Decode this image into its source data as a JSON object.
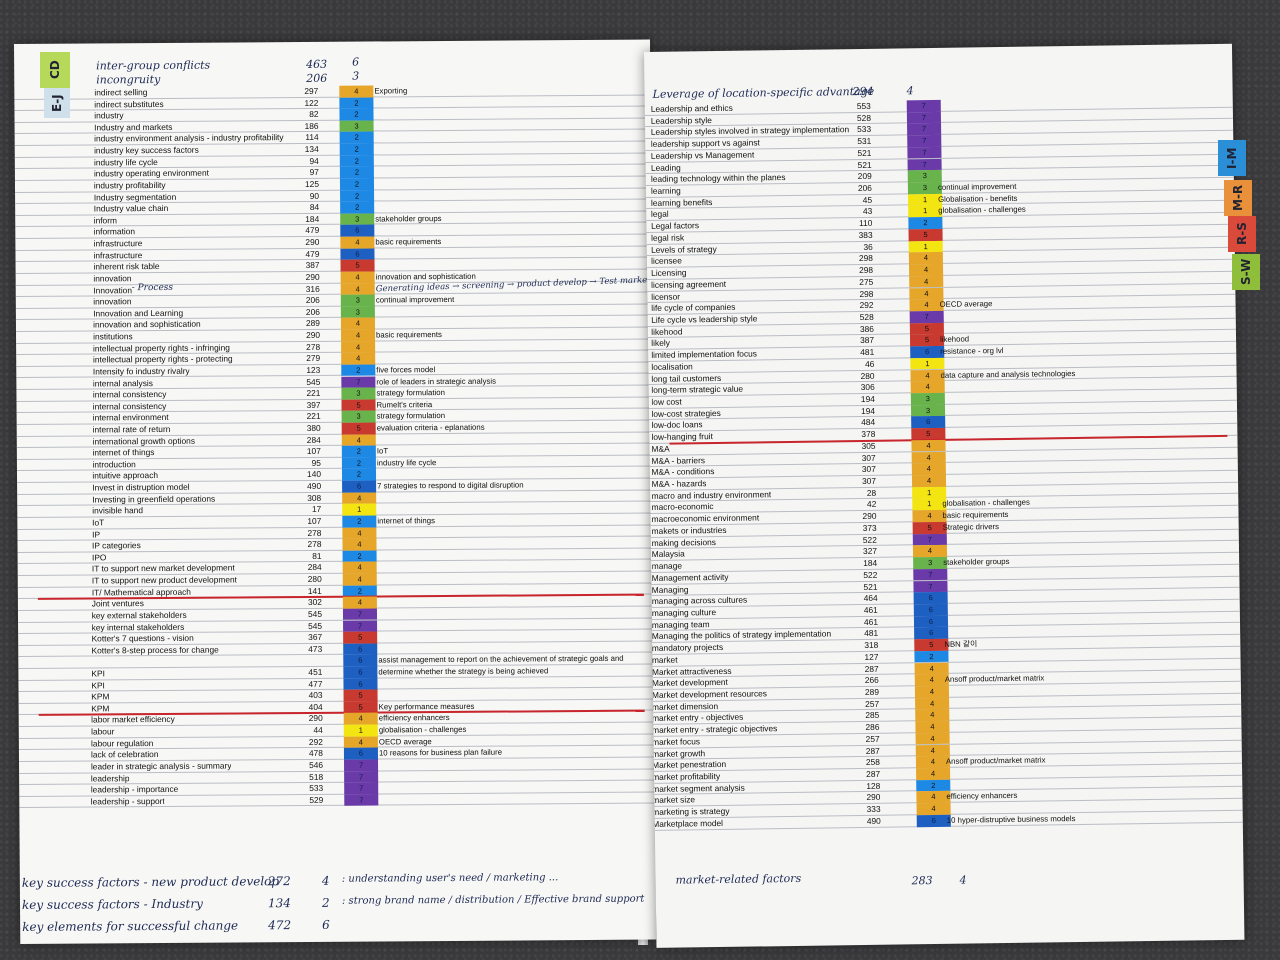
{
  "color_scale": {
    "1": "#f2e511",
    "2": "#1e88e5",
    "3": "#69b34c",
    "4": "#e5a62a",
    "5": "#c8392f",
    "6": "#1e5fc2",
    "7": "#6a3aa8"
  },
  "tabs": {
    "left": [
      {
        "label": "CD",
        "color": "#b7d95a"
      },
      {
        "label": "E-J",
        "color": "#cfe0ea"
      }
    ],
    "right": [
      {
        "label": "I-M",
        "color": "#2a8fd6"
      },
      {
        "label": "M-R",
        "color": "#e8903a"
      },
      {
        "label": "R-S",
        "color": "#d94a3a"
      },
      {
        "label": "S-W",
        "color": "#8fbf3a"
      }
    ]
  },
  "left_page": {
    "header_lines": [
      {
        "term": "inter-group conflicts",
        "num": "463",
        "level": "6"
      },
      {
        "term": "incongruity",
        "num": "206",
        "level": "3"
      }
    ],
    "rows": [
      {
        "term": "indirect selling",
        "num": "297",
        "level": 4,
        "note": "Exporting"
      },
      {
        "term": "indirect substitutes",
        "num": "122",
        "level": 2,
        "note": ""
      },
      {
        "term": "industry",
        "num": "82",
        "level": 2,
        "note": ""
      },
      {
        "term": "Industry and markets",
        "num": "186",
        "level": 3,
        "note": ""
      },
      {
        "term": "industry environment analysis - industry profitability",
        "num": "114",
        "level": 2,
        "note": ""
      },
      {
        "term": "industry key success factors",
        "num": "134",
        "level": 2,
        "note": ""
      },
      {
        "term": "industry life cycle",
        "num": "94",
        "level": 2,
        "note": ""
      },
      {
        "term": "industry operating environment",
        "num": "97",
        "level": 2,
        "note": ""
      },
      {
        "term": "industry profitability",
        "num": "125",
        "level": 2,
        "note": ""
      },
      {
        "term": "Industry segmentation",
        "num": "90",
        "level": 2,
        "note": ""
      },
      {
        "term": "Industry value chain",
        "num": "84",
        "level": 2,
        "note": ""
      },
      {
        "term": "inform",
        "num": "184",
        "level": 3,
        "note": "stakeholder groups"
      },
      {
        "term": "information",
        "num": "479",
        "level": 6,
        "note": ""
      },
      {
        "term": "infrastructure",
        "num": "290",
        "level": 4,
        "note": "basic requirements"
      },
      {
        "term": "infrastructure",
        "num": "479",
        "level": 6,
        "note": ""
      },
      {
        "term": "inherent risk table",
        "num": "387",
        "level": 5,
        "note": ""
      },
      {
        "term": "innovation",
        "num": "290",
        "level": 4,
        "note": "innovation and sophistication"
      },
      {
        "term": "Innovation",
        "num": "316",
        "level": 4,
        "note": ""
      },
      {
        "term": "innovation",
        "num": "206",
        "level": 3,
        "note": "continual improvement"
      },
      {
        "term": "Innovation and Learning",
        "num": "206",
        "level": 3,
        "note": ""
      },
      {
        "term": "innovation and sophistication",
        "num": "289",
        "level": 4,
        "note": ""
      },
      {
        "term": "institutions",
        "num": "290",
        "level": 4,
        "note": "basic requirements"
      },
      {
        "term": "intellectual property rights - infringing",
        "num": "278",
        "level": 4,
        "note": ""
      },
      {
        "term": "intellectual property rights - protecting",
        "num": "279",
        "level": 4,
        "note": ""
      },
      {
        "term": "Intensity fo industry rivalry",
        "num": "123",
        "level": 2,
        "note": "five forces model"
      },
      {
        "term": "internal analysis",
        "num": "545",
        "level": 7,
        "note": "role of leaders in strategic analysis"
      },
      {
        "term": "internal consistency",
        "num": "221",
        "level": 3,
        "note": "strategy formulation"
      },
      {
        "term": "internal consistency",
        "num": "397",
        "level": 5,
        "note": "Rumelt's criteria"
      },
      {
        "term": "internal environment",
        "num": "221",
        "level": 3,
        "note": "strategy formulation"
      },
      {
        "term": "internal rate of return",
        "num": "380",
        "level": 5,
        "note": "evaluation criteria - eplanations"
      },
      {
        "term": "international growth options",
        "num": "284",
        "level": 4,
        "note": ""
      },
      {
        "term": "internet of things",
        "num": "107",
        "level": 2,
        "note": "IoT"
      },
      {
        "term": "introduction",
        "num": "95",
        "level": 2,
        "note": "industry life cycle"
      },
      {
        "term": "intuitive approach",
        "num": "140",
        "level": 2,
        "note": ""
      },
      {
        "term": "Invest in distruption model",
        "num": "490",
        "level": 6,
        "note": "7 strategies to respond to digital disruption"
      },
      {
        "term": "Investing in greenfield operations",
        "num": "308",
        "level": 4,
        "note": ""
      },
      {
        "term": "invisible hand",
        "num": "17",
        "level": 1,
        "note": ""
      },
      {
        "term": "IoT",
        "num": "107",
        "level": 2,
        "note": "internet of things"
      },
      {
        "term": "IP",
        "num": "278",
        "level": 4,
        "note": ""
      },
      {
        "term": "IP categories",
        "num": "278",
        "level": 4,
        "note": ""
      },
      {
        "term": "IPO",
        "num": "81",
        "level": 2,
        "note": ""
      },
      {
        "term": "IT to support new market development",
        "num": "284",
        "level": 4,
        "note": ""
      },
      {
        "term": "IT to support new product development",
        "num": "280",
        "level": 4,
        "note": ""
      },
      {
        "term": "IT/ Mathematical approach",
        "num": "141",
        "level": 2,
        "note": ""
      },
      {
        "term": "Joint ventures",
        "num": "302",
        "level": 4,
        "note": ""
      },
      {
        "term": "key external stakeholders",
        "num": "545",
        "level": 7,
        "note": ""
      },
      {
        "term": "key internal stakeholders",
        "num": "545",
        "level": 7,
        "note": ""
      },
      {
        "term": "Kotter's 7 questions - vision",
        "num": "367",
        "level": 5,
        "note": ""
      },
      {
        "term": "Kotter's 8-step process for change",
        "num": "473",
        "level": 6,
        "note": ""
      },
      {
        "term": "",
        "num": "",
        "level": 6,
        "note": "assist management to report on the achievement of strategic goals and"
      },
      {
        "term": "KPI",
        "num": "451",
        "level": 6,
        "note": "determine whether the strategy is being achieved"
      },
      {
        "term": "KPI",
        "num": "477",
        "level": 6,
        "note": ""
      },
      {
        "term": "KPM",
        "num": "403",
        "level": 5,
        "note": ""
      },
      {
        "term": "KPM",
        "num": "404",
        "level": 5,
        "note": "Key performance measures"
      },
      {
        "term": "labor market efficiency",
        "num": "290",
        "level": 4,
        "note": "efficiency enhancers"
      },
      {
        "term": "labour",
        "num": "44",
        "level": 1,
        "note": "globalisation - challenges"
      },
      {
        "term": "labour regulation",
        "num": "292",
        "level": 4,
        "note": "OECD average"
      },
      {
        "term": "lack of celebration",
        "num": "478",
        "level": 6,
        "note": "10 reasons for business plan failure"
      },
      {
        "term": "leader in strategic analysis - summary",
        "num": "546",
        "level": 7,
        "note": ""
      },
      {
        "term": "leadership",
        "num": "518",
        "level": 7,
        "note": ""
      },
      {
        "term": "leadership - importance",
        "num": "533",
        "level": 7,
        "note": ""
      },
      {
        "term": "leadership - support",
        "num": "529",
        "level": 7,
        "note": ""
      }
    ],
    "inline_annotation": {
      "prefix": "- Process",
      "text": "Generating ideas → screening → product develop → Test marketing →"
    },
    "footer_lines": [
      {
        "term": "key success factors - new product develop",
        "num": "272",
        "level": "4",
        "note": ": understanding user's need / marketing ..."
      },
      {
        "term": "key success factors - Industry",
        "num": "134",
        "level": "2",
        "note": ": strong brand name / distribution / Effective brand support"
      },
      {
        "term": "key elements for successful change",
        "num": "472",
        "level": "6",
        "note": ""
      }
    ]
  },
  "right_page": {
    "header_lines": [
      {
        "term": "Leverage of location-specific advantage",
        "num": "294",
        "level": "4"
      }
    ],
    "rows": [
      {
        "term": "Leadership and ethics",
        "num": "553",
        "level": 7,
        "note": ""
      },
      {
        "term": "Leadership style",
        "num": "528",
        "level": 7,
        "note": ""
      },
      {
        "term": "Leadership styles involved in strategy implementation",
        "num": "533",
        "level": 7,
        "note": ""
      },
      {
        "term": "leadership support vs against",
        "num": "531",
        "level": 7,
        "note": ""
      },
      {
        "term": "Leadership vs Management",
        "num": "521",
        "level": 7,
        "note": ""
      },
      {
        "term": "Leading",
        "num": "521",
        "level": 7,
        "note": ""
      },
      {
        "term": "leading technology within the planes",
        "num": "209",
        "level": 3,
        "note": ""
      },
      {
        "term": "learning",
        "num": "206",
        "level": 3,
        "note": "continual improvement"
      },
      {
        "term": "learning benefits",
        "num": "45",
        "level": 1,
        "note": "Globalisation - benefits"
      },
      {
        "term": "legal",
        "num": "43",
        "level": 1,
        "note": "globalisation - challenges"
      },
      {
        "term": "Legal factors",
        "num": "110",
        "level": 2,
        "note": ""
      },
      {
        "term": "legal risk",
        "num": "383",
        "level": 5,
        "note": ""
      },
      {
        "term": "Levels of strategy",
        "num": "36",
        "level": 1,
        "note": ""
      },
      {
        "term": "licensee",
        "num": "298",
        "level": 4,
        "note": ""
      },
      {
        "term": "Licensing",
        "num": "298",
        "level": 4,
        "note": ""
      },
      {
        "term": "licensing agreement",
        "num": "275",
        "level": 4,
        "note": ""
      },
      {
        "term": "licensor",
        "num": "298",
        "level": 4,
        "note": ""
      },
      {
        "term": "life cycle of companies",
        "num": "292",
        "level": 4,
        "note": "OECD average"
      },
      {
        "term": "Life cycle vs leadership style",
        "num": "528",
        "level": 7,
        "note": ""
      },
      {
        "term": "likehood",
        "num": "386",
        "level": 5,
        "note": ""
      },
      {
        "term": "likely",
        "num": "387",
        "level": 5,
        "note": "likehood"
      },
      {
        "term": "limited implementation focus",
        "num": "481",
        "level": 6,
        "note": "resistance - org lvl"
      },
      {
        "term": "localisation",
        "num": "46",
        "level": 1,
        "note": ""
      },
      {
        "term": "long tail customers",
        "num": "280",
        "level": 4,
        "note": "data capture and analysis technologies"
      },
      {
        "term": "long-term strategic value",
        "num": "306",
        "level": 4,
        "note": ""
      },
      {
        "term": "low cost",
        "num": "194",
        "level": 3,
        "note": ""
      },
      {
        "term": "low-cost strategies",
        "num": "194",
        "level": 3,
        "note": ""
      },
      {
        "term": "low-doc loans",
        "num": "484",
        "level": 6,
        "note": ""
      },
      {
        "term": "low-hanging fruit",
        "num": "378",
        "level": 5,
        "note": ""
      },
      {
        "term": "M&A",
        "num": "305",
        "level": 4,
        "note": ""
      },
      {
        "term": "M&A - barriers",
        "num": "307",
        "level": 4,
        "note": ""
      },
      {
        "term": "M&A - conditions",
        "num": "307",
        "level": 4,
        "note": ""
      },
      {
        "term": "M&A - hazards",
        "num": "307",
        "level": 4,
        "note": ""
      },
      {
        "term": "macro and industry environment",
        "num": "28",
        "level": 1,
        "note": ""
      },
      {
        "term": "macro-economic",
        "num": "42",
        "level": 1,
        "note": "globalisation - challenges"
      },
      {
        "term": "macroeconomic environment",
        "num": "290",
        "level": 4,
        "note": "basic requirements"
      },
      {
        "term": "makets or industries",
        "num": "373",
        "level": 5,
        "note": "Strategic drivers"
      },
      {
        "term": "making decisions",
        "num": "522",
        "level": 7,
        "note": ""
      },
      {
        "term": "Malaysia",
        "num": "327",
        "level": 4,
        "note": ""
      },
      {
        "term": "manage",
        "num": "184",
        "level": 3,
        "note": "stakeholder groups"
      },
      {
        "term": "Management activity",
        "num": "522",
        "level": 7,
        "note": ""
      },
      {
        "term": "Managing",
        "num": "521",
        "level": 7,
        "note": ""
      },
      {
        "term": "managing across cultures",
        "num": "464",
        "level": 6,
        "note": ""
      },
      {
        "term": "managing culture",
        "num": "461",
        "level": 6,
        "note": ""
      },
      {
        "term": "managing team",
        "num": "461",
        "level": 6,
        "note": ""
      },
      {
        "term": "Managing the politics of strategy implementation",
        "num": "481",
        "level": 6,
        "note": ""
      },
      {
        "term": "mandatory projects",
        "num": "318",
        "level": 5,
        "note": "NBN 같이"
      },
      {
        "term": "market",
        "num": "127",
        "level": 2,
        "note": ""
      },
      {
        "term": "Market attractiveness",
        "num": "287",
        "level": 4,
        "note": ""
      },
      {
        "term": "Market development",
        "num": "266",
        "level": 4,
        "note": "Ansoff product/market matrix"
      },
      {
        "term": "Market development resources",
        "num": "289",
        "level": 4,
        "note": ""
      },
      {
        "term": "market dimension",
        "num": "257",
        "level": 4,
        "note": ""
      },
      {
        "term": "market entry - objectives",
        "num": "285",
        "level": 4,
        "note": ""
      },
      {
        "term": "market entry - strategic objectives",
        "num": "286",
        "level": 4,
        "note": ""
      },
      {
        "term": "market focus",
        "num": "257",
        "level": 4,
        "note": ""
      },
      {
        "term": "market growth",
        "num": "287",
        "level": 4,
        "note": ""
      },
      {
        "term": "Market penestration",
        "num": "258",
        "level": 4,
        "note": "Ansoff product/market matrix"
      },
      {
        "term": "market profitability",
        "num": "287",
        "level": 4,
        "note": ""
      },
      {
        "term": "market segment analysis",
        "num": "128",
        "level": 2,
        "note": ""
      },
      {
        "term": "market size",
        "num": "290",
        "level": 4,
        "note": "efficiency enhancers"
      },
      {
        "term": "marketing is strategy",
        "num": "333",
        "level": 4,
        "note": ""
      },
      {
        "term": "Marketplace model",
        "num": "490",
        "level": 6,
        "note": "10 hyper-distruptive business models"
      }
    ],
    "footer_lines": [
      {
        "term": "market-related factors",
        "num": "283",
        "level": "4"
      }
    ]
  }
}
